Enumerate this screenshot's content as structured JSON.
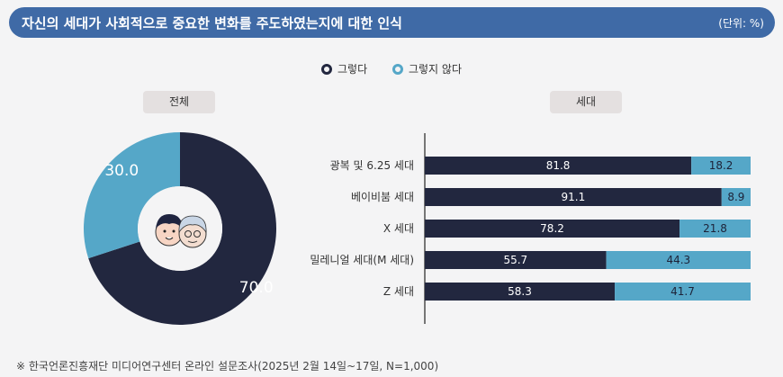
{
  "header": {
    "title": "자신의 세대가 사회적으로 중요한 변화를 주도하였는지에 대한 인식",
    "unit": "(단위: %)"
  },
  "legend": [
    {
      "label": "그렇다",
      "color": "#22273f"
    },
    {
      "label": "그렇지 않다",
      "color": "#55a7c8"
    }
  ],
  "panels": {
    "left": "전체",
    "right": "세대"
  },
  "chart_data": [
    {
      "type": "pie",
      "donut": true,
      "title": "전체",
      "slices": [
        {
          "label": "그렇다",
          "value": 70.0,
          "color": "#22273f"
        },
        {
          "label": "그렇지 않다",
          "value": 30.0,
          "color": "#55a7c8"
        }
      ],
      "center_icon": "two-generations-faces-icon"
    },
    {
      "type": "bar",
      "orientation": "horizontal",
      "stacked": true,
      "title": "세대",
      "categories": [
        "광복 및 6.25 세대",
        "베이비붐 세대",
        "X 세대",
        "밀레니얼 세대(M 세대)",
        "Z 세대"
      ],
      "series": [
        {
          "name": "그렇다",
          "values": [
            "81.8",
            "91.1",
            "78.2",
            "55.7",
            "58.3"
          ],
          "color": "#22273f"
        },
        {
          "name": "그렇지 않다",
          "values": [
            "18.2",
            "8.9",
            "21.8",
            "44.3",
            "41.7"
          ],
          "color": "#55a7c8"
        }
      ],
      "xlim": [
        0,
        100
      ]
    }
  ],
  "footnote": "※ 한국언론진흥재단 미디어연구센터 온라인 설문조사(2025년 2월 14일~17일, N=1,000)"
}
